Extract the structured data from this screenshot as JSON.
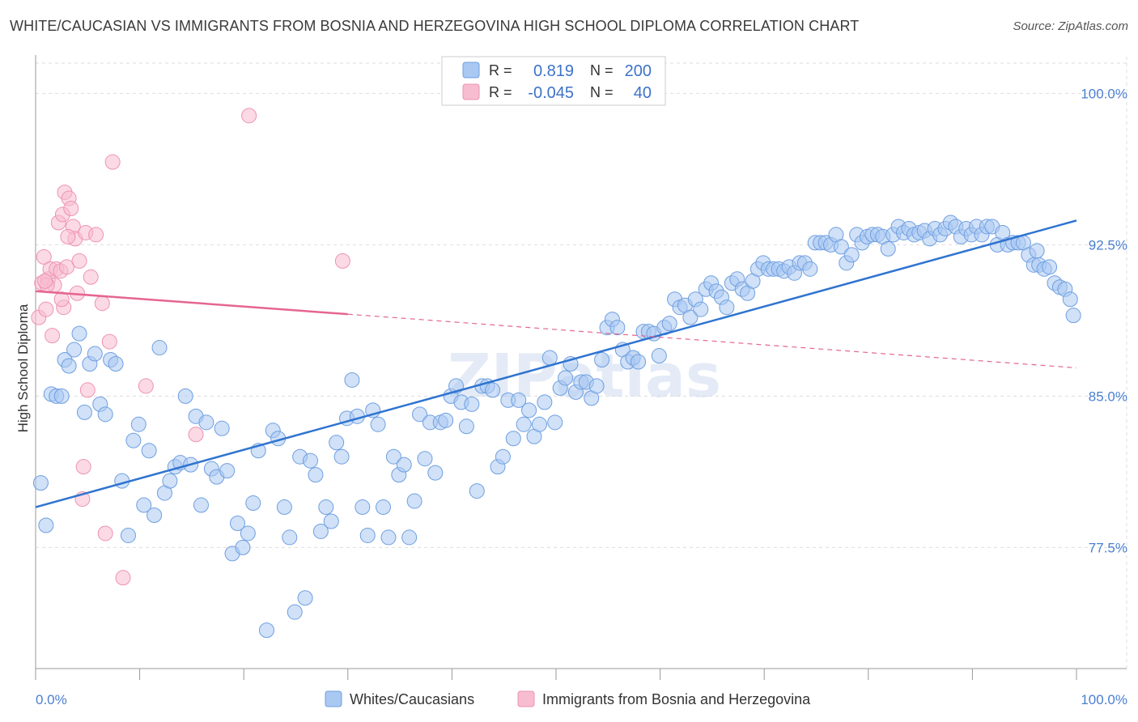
{
  "title": "WHITE/CAUCASIAN VS IMMIGRANTS FROM BOSNIA AND HERZEGOVINA HIGH SCHOOL DIPLOMA CORRELATION CHART",
  "source": "Source: ZipAtlas.com",
  "watermark": "ZIPatlas",
  "colors": {
    "blue_fill": "#a9c8f2",
    "blue_stroke": "#6f9fe0",
    "blue_line": "#2f74d0",
    "pink_fill": "#f7bcd0",
    "pink_stroke": "#ee93b0",
    "pink_line": "#e5668f",
    "tick_text": "#4a7fd0",
    "grid": "#dddddd"
  },
  "legend": {
    "rows": [
      {
        "series": "blue",
        "r_label": "R =",
        "r_value": "0.819",
        "n_label": "N =",
        "n_value": "200"
      },
      {
        "series": "pink",
        "r_label": "R =",
        "r_value": "-0.045",
        "n_label": "N =",
        "n_value": "40"
      }
    ]
  },
  "chart_data": {
    "type": "scatter",
    "title": "WHITE/CAUCASIAN VS IMMIGRANTS FROM BOSNIA AND HERZEGOVINA HIGH SCHOOL DIPLOMA CORRELATION CHART",
    "xlabel": "",
    "ylabel": "High School Diploma",
    "xlim": [
      0,
      100
    ],
    "ylim": [
      71.5,
      101.5
    ],
    "x_tick_labels": [
      "0.0%",
      "100.0%"
    ],
    "y_ticks": [
      77.5,
      85.0,
      92.5,
      100.0
    ],
    "y_tick_labels": [
      "77.5%",
      "85.0%",
      "92.5%",
      "100.0%"
    ],
    "grid": true,
    "legend_position": "top-center",
    "series": [
      {
        "name": "Whites/Caucasians",
        "color": "blue",
        "trend": {
          "x": [
            0,
            100
          ],
          "y": [
            79.5,
            93.7
          ],
          "style": "solid"
        },
        "points": [
          [
            0.5,
            80.7
          ],
          [
            1.0,
            78.6
          ],
          [
            1.5,
            85.1
          ],
          [
            2.0,
            85.0
          ],
          [
            2.5,
            85.0
          ],
          [
            2.8,
            86.8
          ],
          [
            3.2,
            86.5
          ],
          [
            3.7,
            87.3
          ],
          [
            4.2,
            88.1
          ],
          [
            4.7,
            84.2
          ],
          [
            5.2,
            86.6
          ],
          [
            5.7,
            87.1
          ],
          [
            6.2,
            84.6
          ],
          [
            6.7,
            84.1
          ],
          [
            7.2,
            86.8
          ],
          [
            7.7,
            86.6
          ],
          [
            8.3,
            80.8
          ],
          [
            8.9,
            78.1
          ],
          [
            9.4,
            82.8
          ],
          [
            9.9,
            83.6
          ],
          [
            10.4,
            79.6
          ],
          [
            10.9,
            82.3
          ],
          [
            11.4,
            79.1
          ],
          [
            11.9,
            87.4
          ],
          [
            12.4,
            80.2
          ],
          [
            12.9,
            80.8
          ],
          [
            13.4,
            81.5
          ],
          [
            13.9,
            81.7
          ],
          [
            14.4,
            85.0
          ],
          [
            14.9,
            81.6
          ],
          [
            15.4,
            84.0
          ],
          [
            15.9,
            79.6
          ],
          [
            16.4,
            83.7
          ],
          [
            16.9,
            81.4
          ],
          [
            17.4,
            81.0
          ],
          [
            17.9,
            83.4
          ],
          [
            18.4,
            81.3
          ],
          [
            18.9,
            77.2
          ],
          [
            19.4,
            78.7
          ],
          [
            19.9,
            77.5
          ],
          [
            20.4,
            78.2
          ],
          [
            20.9,
            79.7
          ],
          [
            21.4,
            82.3
          ],
          [
            22.2,
            73.4
          ],
          [
            22.8,
            83.3
          ],
          [
            23.3,
            82.9
          ],
          [
            23.9,
            79.5
          ],
          [
            24.4,
            78.0
          ],
          [
            24.9,
            74.3
          ],
          [
            25.4,
            82.0
          ],
          [
            25.9,
            75.0
          ],
          [
            26.4,
            81.8
          ],
          [
            26.9,
            81.1
          ],
          [
            27.4,
            78.3
          ],
          [
            27.9,
            79.5
          ],
          [
            28.4,
            78.8
          ],
          [
            28.9,
            82.7
          ],
          [
            29.4,
            82.0
          ],
          [
            29.9,
            83.9
          ],
          [
            30.4,
            85.8
          ],
          [
            30.9,
            84.0
          ],
          [
            31.4,
            79.5
          ],
          [
            31.9,
            78.1
          ],
          [
            32.4,
            84.3
          ],
          [
            32.9,
            83.6
          ],
          [
            33.4,
            79.5
          ],
          [
            33.9,
            78.0
          ],
          [
            34.4,
            82.0
          ],
          [
            34.9,
            81.1
          ],
          [
            35.4,
            81.6
          ],
          [
            35.9,
            78.0
          ],
          [
            36.4,
            79.8
          ],
          [
            36.9,
            84.1
          ],
          [
            37.4,
            81.9
          ],
          [
            37.9,
            83.7
          ],
          [
            38.4,
            81.2
          ],
          [
            38.9,
            83.7
          ],
          [
            39.4,
            83.8
          ],
          [
            39.9,
            85.0
          ],
          [
            40.4,
            85.5
          ],
          [
            40.9,
            84.7
          ],
          [
            41.4,
            83.5
          ],
          [
            41.9,
            84.6
          ],
          [
            42.4,
            80.3
          ],
          [
            42.9,
            85.5
          ],
          [
            43.4,
            85.5
          ],
          [
            43.9,
            85.3
          ],
          [
            44.4,
            81.5
          ],
          [
            44.9,
            82.0
          ],
          [
            45.4,
            84.8
          ],
          [
            45.9,
            82.9
          ],
          [
            46.4,
            84.8
          ],
          [
            46.9,
            83.6
          ],
          [
            47.4,
            84.3
          ],
          [
            47.9,
            83.0
          ],
          [
            48.4,
            83.6
          ],
          [
            48.9,
            84.7
          ],
          [
            49.4,
            86.9
          ],
          [
            49.9,
            83.7
          ],
          [
            50.4,
            85.4
          ],
          [
            50.9,
            85.9
          ],
          [
            51.4,
            86.6
          ],
          [
            51.9,
            85.2
          ],
          [
            52.4,
            85.7
          ],
          [
            52.9,
            85.7
          ],
          [
            53.4,
            84.9
          ],
          [
            53.9,
            85.5
          ],
          [
            54.4,
            86.8
          ],
          [
            54.9,
            88.4
          ],
          [
            55.4,
            88.8
          ],
          [
            55.9,
            88.4
          ],
          [
            56.4,
            87.3
          ],
          [
            56.9,
            86.7
          ],
          [
            57.4,
            86.9
          ],
          [
            57.9,
            86.7
          ],
          [
            58.4,
            88.2
          ],
          [
            58.9,
            88.2
          ],
          [
            59.4,
            88.1
          ],
          [
            59.9,
            87.0
          ],
          [
            60.4,
            88.4
          ],
          [
            60.9,
            88.6
          ],
          [
            61.4,
            89.8
          ],
          [
            61.9,
            89.4
          ],
          [
            62.4,
            89.5
          ],
          [
            62.9,
            88.9
          ],
          [
            63.4,
            89.8
          ],
          [
            63.9,
            89.3
          ],
          [
            64.4,
            90.3
          ],
          [
            64.9,
            90.6
          ],
          [
            65.4,
            90.2
          ],
          [
            65.9,
            89.9
          ],
          [
            66.4,
            89.4
          ],
          [
            66.9,
            90.6
          ],
          [
            67.4,
            90.8
          ],
          [
            67.9,
            90.3
          ],
          [
            68.4,
            90.1
          ],
          [
            68.9,
            90.7
          ],
          [
            69.4,
            91.3
          ],
          [
            69.9,
            91.6
          ],
          [
            70.4,
            91.3
          ],
          [
            70.9,
            91.3
          ],
          [
            71.4,
            91.3
          ],
          [
            71.9,
            91.2
          ],
          [
            72.4,
            91.4
          ],
          [
            72.9,
            91.1
          ],
          [
            73.4,
            91.6
          ],
          [
            73.9,
            91.6
          ],
          [
            74.4,
            91.3
          ],
          [
            74.9,
            92.6
          ],
          [
            75.4,
            92.6
          ],
          [
            75.9,
            92.6
          ],
          [
            76.4,
            92.5
          ],
          [
            76.9,
            93.0
          ],
          [
            77.4,
            92.4
          ],
          [
            77.9,
            91.6
          ],
          [
            78.4,
            92.0
          ],
          [
            78.9,
            93.0
          ],
          [
            79.4,
            92.6
          ],
          [
            79.9,
            92.9
          ],
          [
            80.4,
            93.0
          ],
          [
            80.9,
            93.0
          ],
          [
            81.4,
            92.9
          ],
          [
            81.9,
            92.3
          ],
          [
            82.4,
            93.0
          ],
          [
            82.9,
            93.4
          ],
          [
            83.4,
            93.1
          ],
          [
            83.9,
            93.3
          ],
          [
            84.4,
            93.0
          ],
          [
            84.9,
            93.1
          ],
          [
            85.4,
            93.2
          ],
          [
            85.9,
            92.8
          ],
          [
            86.4,
            93.3
          ],
          [
            86.9,
            93.0
          ],
          [
            87.4,
            93.3
          ],
          [
            87.9,
            93.6
          ],
          [
            88.4,
            93.4
          ],
          [
            88.9,
            92.9
          ],
          [
            89.4,
            93.3
          ],
          [
            89.9,
            93.0
          ],
          [
            90.4,
            93.4
          ],
          [
            90.9,
            93.0
          ],
          [
            91.4,
            93.4
          ],
          [
            91.9,
            93.4
          ],
          [
            92.4,
            92.5
          ],
          [
            92.9,
            93.1
          ],
          [
            93.4,
            92.5
          ],
          [
            93.9,
            92.6
          ],
          [
            94.4,
            92.6
          ],
          [
            94.9,
            92.6
          ],
          [
            95.4,
            92.0
          ],
          [
            95.9,
            91.5
          ],
          [
            96.4,
            91.5
          ],
          [
            96.9,
            91.3
          ],
          [
            97.4,
            91.4
          ],
          [
            97.9,
            90.6
          ],
          [
            98.4,
            90.4
          ],
          [
            98.9,
            90.3
          ],
          [
            99.4,
            89.8
          ],
          [
            99.7,
            89.0
          ],
          [
            96.2,
            92.2
          ]
        ]
      },
      {
        "name": "Immigrants from Bosnia and Herzegovina",
        "color": "pink",
        "trend": {
          "x": [
            0,
            100
          ],
          "y": [
            90.2,
            86.4
          ],
          "solid_until": 30,
          "style": "solid-then-dashed"
        },
        "points": [
          [
            0.3,
            88.9
          ],
          [
            0.6,
            90.6
          ],
          [
            0.8,
            91.9
          ],
          [
            1.0,
            89.3
          ],
          [
            1.2,
            90.8
          ],
          [
            1.4,
            91.3
          ],
          [
            1.6,
            88.0
          ],
          [
            1.8,
            90.5
          ],
          [
            2.0,
            91.3
          ],
          [
            2.2,
            93.6
          ],
          [
            2.4,
            91.2
          ],
          [
            2.6,
            94.0
          ],
          [
            2.7,
            89.4
          ],
          [
            2.8,
            95.1
          ],
          [
            3.0,
            91.4
          ],
          [
            3.2,
            94.8
          ],
          [
            3.4,
            94.3
          ],
          [
            3.6,
            93.4
          ],
          [
            3.8,
            92.8
          ],
          [
            4.0,
            90.1
          ],
          [
            4.2,
            91.7
          ],
          [
            4.5,
            79.9
          ],
          [
            4.8,
            93.1
          ],
          [
            4.6,
            81.5
          ],
          [
            5.0,
            85.3
          ],
          [
            5.3,
            90.9
          ],
          [
            5.8,
            93.0
          ],
          [
            6.4,
            89.6
          ],
          [
            6.7,
            78.2
          ],
          [
            7.1,
            87.7
          ],
          [
            7.4,
            96.6
          ],
          [
            8.4,
            76.0
          ],
          [
            10.6,
            85.5
          ],
          [
            15.4,
            83.1
          ],
          [
            20.5,
            98.9
          ],
          [
            29.5,
            91.7
          ],
          [
            1.1,
            90.5
          ],
          [
            2.5,
            89.8
          ],
          [
            0.9,
            90.7
          ],
          [
            3.1,
            92.9
          ]
        ]
      }
    ]
  },
  "bottom_legend": {
    "items": [
      {
        "series": "blue",
        "label": "Whites/Caucasians"
      },
      {
        "series": "pink",
        "label": "Immigrants from Bosnia and Herzegovina"
      }
    ]
  }
}
